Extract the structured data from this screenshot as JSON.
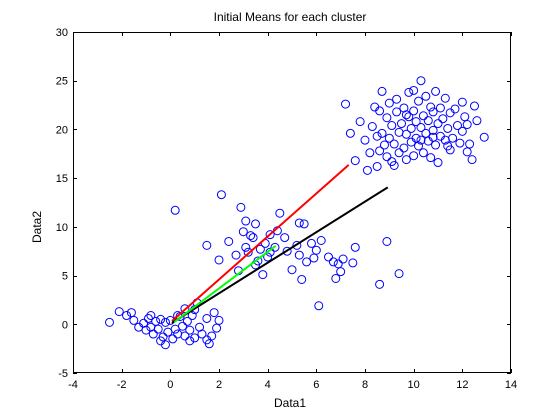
{
  "chart_data": {
    "type": "scatter",
    "title": "Initial Means  for each cluster",
    "xlabel": "Data1",
    "ylabel": "Data2",
    "xlim": [
      -4,
      14
    ],
    "ylim": [
      -5,
      30
    ],
    "xticks": [
      -4,
      -2,
      0,
      2,
      4,
      6,
      8,
      10,
      12,
      14
    ],
    "yticks": [
      -5,
      0,
      5,
      10,
      15,
      20,
      25,
      30
    ],
    "grid": false,
    "legend": "none",
    "box": true,
    "marker_color": "#0000ff",
    "marker": "open-circle",
    "points": [
      [
        -2.5,
        0.2
      ],
      [
        -2.1,
        1.3
      ],
      [
        -1.8,
        0.9
      ],
      [
        -1.6,
        1.2
      ],
      [
        -1.5,
        0.4
      ],
      [
        -1.3,
        -0.3
      ],
      [
        -1.1,
        0.1
      ],
      [
        -1.0,
        -0.6
      ],
      [
        -0.9,
        0.6
      ],
      [
        -0.8,
        0.9
      ],
      [
        -0.8,
        -0.3
      ],
      [
        -0.7,
        -1.0
      ],
      [
        -0.6,
        0.3
      ],
      [
        -0.5,
        -0.5
      ],
      [
        -0.4,
        0.5
      ],
      [
        -0.3,
        -1.3
      ],
      [
        -0.2,
        0.2
      ],
      [
        -0.2,
        -2.1
      ],
      [
        -0.1,
        -0.8
      ],
      [
        0.0,
        0.4
      ],
      [
        0.1,
        -1.5
      ],
      [
        0.2,
        -0.5
      ],
      [
        0.3,
        -1.0
      ],
      [
        0.4,
        0.8
      ],
      [
        0.5,
        -0.2
      ],
      [
        0.6,
        -1.2
      ],
      [
        0.7,
        0.3
      ],
      [
        0.8,
        -0.6
      ],
      [
        0.9,
        0.9
      ],
      [
        1.0,
        -1.4
      ],
      [
        1.0,
        1.5
      ],
      [
        1.2,
        -0.3
      ],
      [
        1.3,
        -1.0
      ],
      [
        1.5,
        0.6
      ],
      [
        1.6,
        -2.0
      ],
      [
        1.7,
        -1.2
      ],
      [
        1.8,
        1.2
      ],
      [
        1.9,
        -0.4
      ],
      [
        2.0,
        0.4
      ],
      [
        1.1,
        2.2
      ],
      [
        0.6,
        1.6
      ],
      [
        0.3,
        0.9
      ],
      [
        1.5,
        -1.6
      ],
      [
        0.8,
        -1.7
      ],
      [
        -0.4,
        -1.7
      ],
      [
        0.2,
        11.7
      ],
      [
        1.5,
        8.1
      ],
      [
        2.0,
        6.6
      ],
      [
        2.1,
        13.3
      ],
      [
        2.4,
        8.5
      ],
      [
        2.7,
        7.1
      ],
      [
        2.8,
        5.5
      ],
      [
        2.9,
        12.0
      ],
      [
        3.0,
        9.5
      ],
      [
        3.1,
        7.9
      ],
      [
        3.1,
        10.6
      ],
      [
        3.2,
        7.4
      ],
      [
        3.3,
        9.1
      ],
      [
        3.4,
        8.9
      ],
      [
        3.5,
        10.3
      ],
      [
        3.5,
        6.1
      ],
      [
        3.6,
        6.5
      ],
      [
        3.7,
        7.7
      ],
      [
        3.8,
        5.1
      ],
      [
        3.9,
        8.3
      ],
      [
        4.0,
        6.9
      ],
      [
        4.1,
        7.4
      ],
      [
        4.1,
        9.2
      ],
      [
        4.3,
        7.9
      ],
      [
        4.4,
        9.6
      ],
      [
        4.5,
        11.4
      ],
      [
        4.7,
        8.9
      ],
      [
        4.8,
        7.5
      ],
      [
        5.0,
        5.6
      ],
      [
        5.2,
        8.1
      ],
      [
        5.3,
        7.1
      ],
      [
        5.3,
        10.4
      ],
      [
        5.4,
        4.6
      ],
      [
        5.5,
        10.3
      ],
      [
        5.6,
        6.4
      ],
      [
        5.8,
        8.3
      ],
      [
        5.9,
        6.8
      ],
      [
        6.0,
        7.6
      ],
      [
        6.1,
        1.9
      ],
      [
        6.2,
        8.6
      ],
      [
        6.5,
        6.9
      ],
      [
        6.7,
        6.4
      ],
      [
        6.8,
        4.7
      ],
      [
        6.9,
        6.2
      ],
      [
        7.0,
        5.4
      ],
      [
        7.1,
        6.7
      ],
      [
        7.6,
        7.9
      ],
      [
        7.5,
        6.3
      ],
      [
        8.6,
        4.1
      ],
      [
        8.9,
        8.5
      ],
      [
        9.4,
        5.2
      ],
      [
        7.2,
        22.6
      ],
      [
        7.4,
        19.6
      ],
      [
        7.6,
        16.8
      ],
      [
        7.8,
        20.8
      ],
      [
        8.0,
        18.9
      ],
      [
        8.1,
        15.8
      ],
      [
        8.2,
        17.6
      ],
      [
        8.3,
        20.3
      ],
      [
        8.4,
        22.3
      ],
      [
        8.5,
        19.3
      ],
      [
        8.5,
        16.2
      ],
      [
        8.6,
        21.9
      ],
      [
        8.6,
        17.8
      ],
      [
        8.7,
        23.9
      ],
      [
        8.7,
        19.6
      ],
      [
        8.8,
        18.4
      ],
      [
        8.9,
        21.2
      ],
      [
        8.9,
        17.2
      ],
      [
        9.0,
        22.7
      ],
      [
        9.0,
        19.1
      ],
      [
        9.1,
        20.4
      ],
      [
        9.1,
        16.7
      ],
      [
        9.2,
        18.5
      ],
      [
        9.3,
        21.8
      ],
      [
        9.3,
        23.1
      ],
      [
        9.4,
        19.7
      ],
      [
        9.4,
        17.6
      ],
      [
        9.5,
        20.6
      ],
      [
        9.6,
        18.1
      ],
      [
        9.6,
        22.2
      ],
      [
        9.7,
        16.9
      ],
      [
        9.7,
        19.5
      ],
      [
        9.8,
        21.3
      ],
      [
        9.8,
        23.8
      ],
      [
        9.9,
        18.7
      ],
      [
        9.9,
        20.1
      ],
      [
        10.0,
        17.3
      ],
      [
        10.0,
        21.9
      ],
      [
        10.0,
        24.0
      ],
      [
        10.1,
        19.1
      ],
      [
        10.1,
        20.8
      ],
      [
        10.2,
        22.9
      ],
      [
        10.2,
        18.3
      ],
      [
        10.3,
        25.0
      ],
      [
        10.3,
        20.2
      ],
      [
        10.4,
        17.6
      ],
      [
        10.4,
        21.4
      ],
      [
        10.5,
        19.6
      ],
      [
        10.5,
        23.4
      ],
      [
        10.6,
        18.8
      ],
      [
        10.6,
        20.9
      ],
      [
        10.7,
        22.3
      ],
      [
        10.7,
        17.1
      ],
      [
        10.8,
        19.9
      ],
      [
        10.8,
        21.8
      ],
      [
        10.9,
        23.9
      ],
      [
        10.9,
        18.4
      ],
      [
        11.0,
        20.6
      ],
      [
        11.0,
        16.6
      ],
      [
        11.1,
        22.2
      ],
      [
        11.1,
        19.3
      ],
      [
        11.2,
        21.1
      ],
      [
        11.3,
        18.9
      ],
      [
        11.3,
        23.2
      ],
      [
        11.4,
        20.1
      ],
      [
        11.5,
        17.9
      ],
      [
        11.5,
        21.7
      ],
      [
        11.6,
        19.1
      ],
      [
        11.7,
        22.1
      ],
      [
        11.8,
        20.4
      ],
      [
        11.9,
        18.6
      ],
      [
        12.0,
        22.8
      ],
      [
        12.0,
        19.8
      ],
      [
        12.1,
        21.3
      ],
      [
        12.2,
        17.7
      ],
      [
        12.2,
        20.5
      ],
      [
        12.3,
        18.5
      ],
      [
        12.4,
        16.9
      ],
      [
        12.5,
        22.4
      ],
      [
        12.6,
        20.9
      ],
      [
        12.9,
        19.2
      ],
      [
        9.2,
        16.3
      ],
      [
        10.3,
        18.9
      ],
      [
        9.7,
        21.5
      ],
      [
        10.8,
        19.2
      ],
      [
        11.4,
        18.3
      ]
    ],
    "lines": [
      {
        "color": "#ff0000",
        "x": [
          0.1,
          7.3
        ],
        "y": [
          0.4,
          16.3
        ]
      },
      {
        "color": "#000000",
        "x": [
          0.1,
          8.9
        ],
        "y": [
          0.2,
          14.0
        ]
      },
      {
        "color": "#00ff00",
        "x": [
          0.2,
          4.3
        ],
        "y": [
          0.3,
          8.0
        ]
      }
    ]
  }
}
